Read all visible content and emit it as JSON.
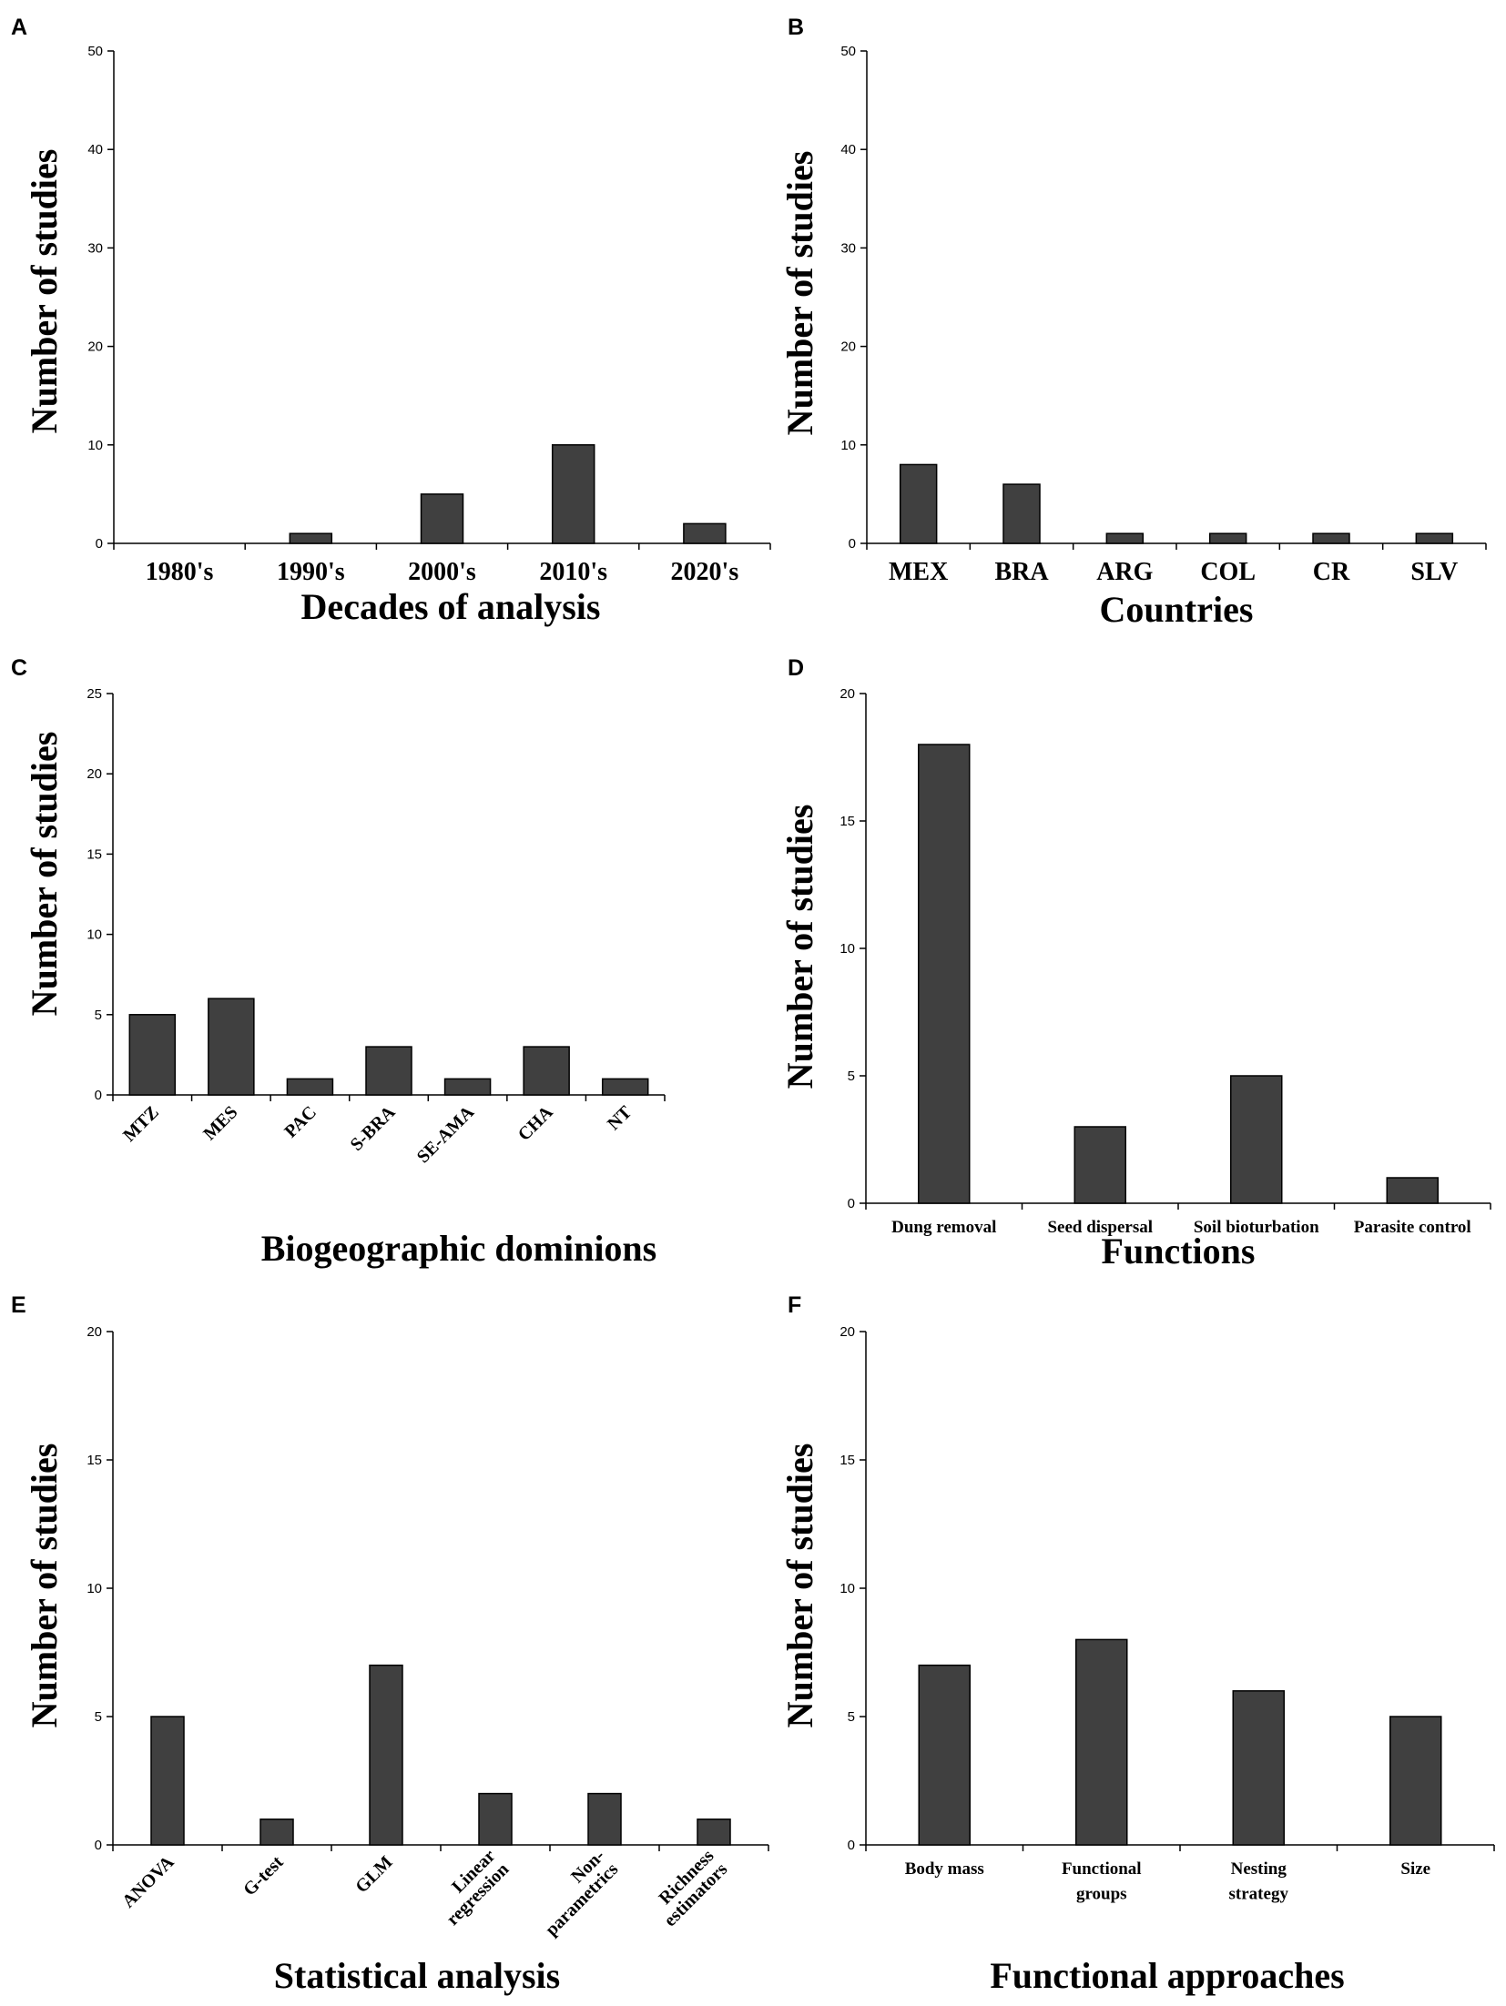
{
  "chart_data": [
    {
      "id": "A",
      "type": "bar",
      "title": "",
      "xlabel": "Decades of analysis",
      "ylabel": "Number of studies",
      "ylim": [
        0,
        50
      ],
      "yticks": [
        0,
        10,
        20,
        30,
        40,
        50
      ],
      "categories": [
        "1980's",
        "1990's",
        "2000's",
        "2010's",
        "2020's"
      ],
      "values": [
        0,
        1,
        5,
        10,
        2
      ],
      "tick_style": "horizontal",
      "legend": "none",
      "bar_color": "#404040"
    },
    {
      "id": "B",
      "type": "bar",
      "title": "",
      "xlabel": "Countries",
      "ylabel": "Number of studies",
      "ylim": [
        0,
        50
      ],
      "yticks": [
        0,
        10,
        20,
        30,
        40,
        50
      ],
      "categories": [
        "MEX",
        "BRA",
        "ARG",
        "COL",
        "CR",
        "SLV"
      ],
      "values": [
        8,
        6,
        1,
        1,
        1,
        1
      ],
      "tick_style": "horizontal",
      "legend": "none",
      "bar_color": "#404040"
    },
    {
      "id": "C",
      "type": "bar",
      "title": "",
      "xlabel": "Biogeographic dominions",
      "ylabel": "Number of studies",
      "ylim": [
        0,
        25
      ],
      "yticks": [
        0,
        5,
        10,
        15,
        20,
        25
      ],
      "categories": [
        "MTZ",
        "MES",
        "PAC",
        "S-BRA",
        "SE-AMA",
        "CHA",
        "NT"
      ],
      "values": [
        5,
        6,
        1,
        3,
        1,
        3,
        1
      ],
      "tick_style": "rotated",
      "legend": "none",
      "bar_color": "#404040"
    },
    {
      "id": "D",
      "type": "bar",
      "title": "",
      "xlabel": "Functions",
      "ylabel": "Number of studies",
      "ylim": [
        0,
        20
      ],
      "yticks": [
        0,
        5,
        10,
        15,
        20
      ],
      "categories": [
        "Dung removal",
        "Seed dispersal",
        "Soil bioturbation",
        "Parasite control"
      ],
      "values": [
        18,
        3,
        5,
        1
      ],
      "tick_style": "horizontal",
      "legend": "none",
      "bar_color": "#404040"
    },
    {
      "id": "E",
      "type": "bar",
      "title": "",
      "xlabel": "Statistical analysis",
      "ylabel": "Number of studies",
      "ylim": [
        0,
        20
      ],
      "yticks": [
        0,
        5,
        10,
        15,
        20
      ],
      "categories": [
        "ANOVA",
        "G-test",
        "GLM",
        [
          "Linear",
          "regression"
        ],
        [
          "Non-",
          "parametrics"
        ],
        [
          "Richness",
          "estimators"
        ]
      ],
      "values": [
        5,
        1,
        7,
        2,
        2,
        1
      ],
      "tick_style": "rotated",
      "legend": "none",
      "bar_color": "#404040"
    },
    {
      "id": "F",
      "type": "bar",
      "title": "",
      "xlabel": "Functional approaches",
      "ylabel": "Number of studies",
      "ylim": [
        0,
        20
      ],
      "yticks": [
        0,
        5,
        10,
        15,
        20
      ],
      "categories": [
        "Body mass",
        [
          "Functional",
          "groups"
        ],
        [
          "Nesting",
          "strategy"
        ],
        "Size"
      ],
      "values": [
        7,
        8,
        6,
        5
      ],
      "tick_style": "horizontal",
      "legend": "none",
      "bar_color": "#404040"
    }
  ]
}
